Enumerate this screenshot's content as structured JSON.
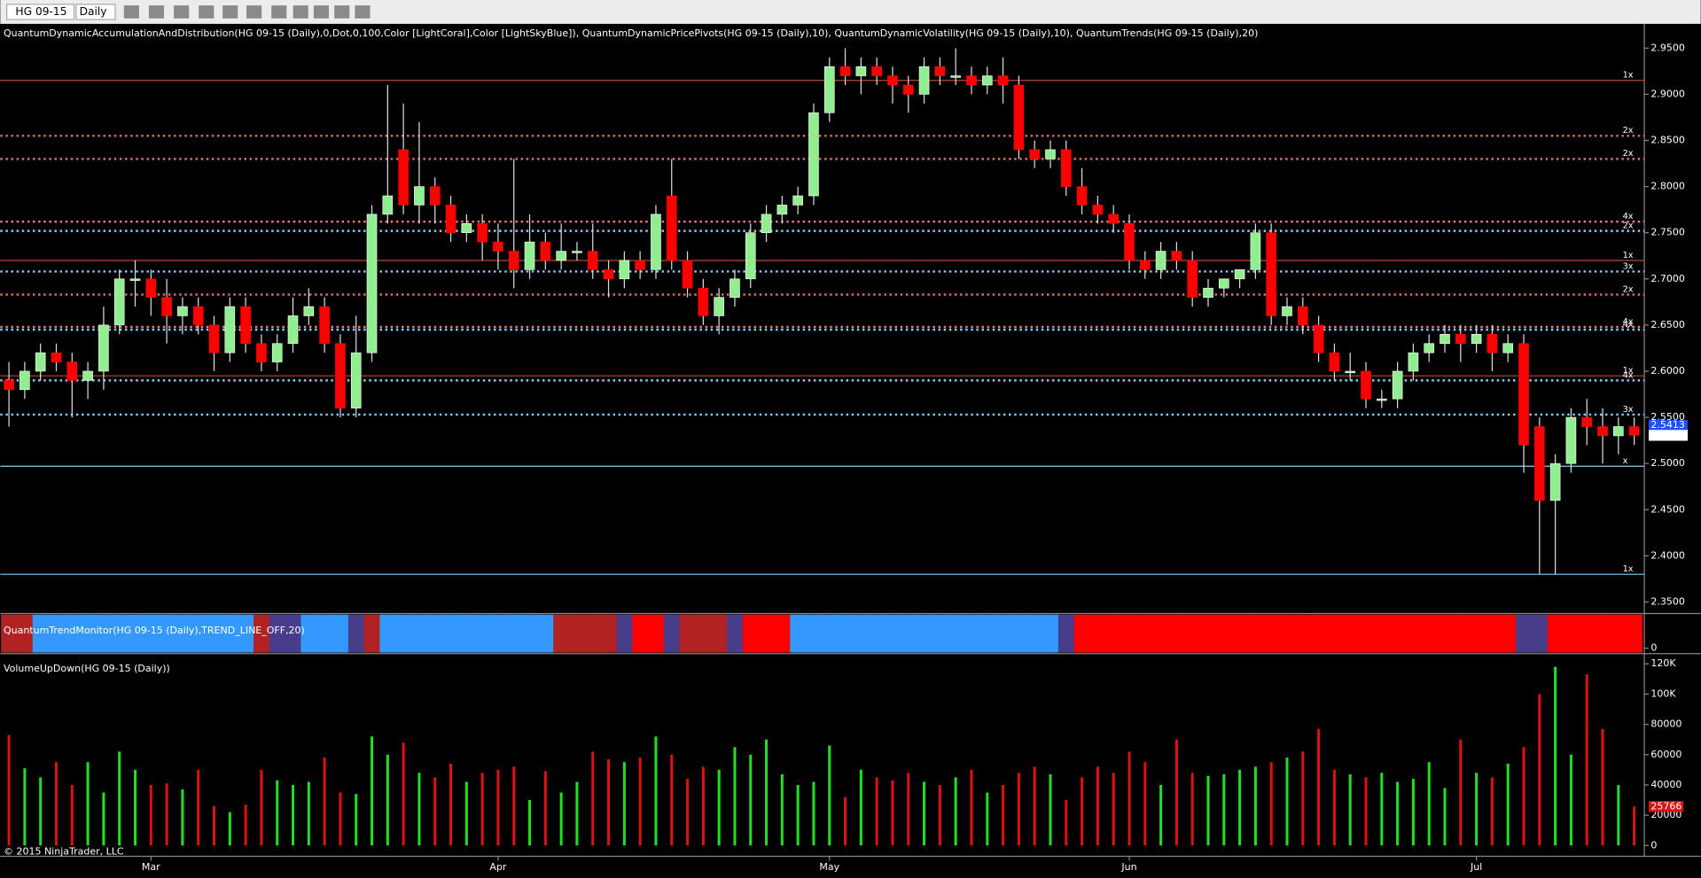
{
  "toolbar": {
    "instrument": "HG 09-15",
    "period": "Daily"
  },
  "footer": "© 2015 NinjaTrader, LLC",
  "chart_data": [
    {
      "type": "candlestick",
      "title": "QuantumDynamicAccumulationAndDistribution(HG 09-15 (Daily),0,Dot,0,100,Color [LightCoral],Color [LightSkyBlue]), QuantumDynamicPricePivots(HG 09-15 (Daily),10), QuantumDynamicVolatility(HG 09-15 (Daily),10), QuantumTrends(HG 09-15 (Daily),20)",
      "categories": [
        null,
        null,
        null,
        null,
        null,
        null,
        null,
        null,
        null,
        "Mar",
        null,
        null,
        null,
        null,
        null,
        null,
        null,
        null,
        null,
        null,
        null,
        null,
        null,
        null,
        null,
        null,
        null,
        null,
        null,
        null,
        null,
        "Apr",
        null,
        null,
        null,
        null,
        null,
        null,
        null,
        null,
        null,
        null,
        null,
        null,
        null,
        null,
        null,
        null,
        null,
        null,
        null,
        null,
        "May",
        null,
        null,
        null,
        null,
        null,
        null,
        null,
        null,
        null,
        null,
        null,
        null,
        null,
        null,
        null,
        null,
        null,
        null,
        "Jun",
        null,
        null,
        null,
        null,
        null,
        null,
        null,
        null,
        null,
        null,
        null,
        null,
        null,
        null,
        null,
        null,
        null,
        null,
        null,
        null,
        null,
        "Jul",
        null,
        null,
        null,
        null,
        null,
        null,
        null,
        null
      ],
      "ohlc": [
        [
          2.59,
          2.61,
          2.54,
          2.58
        ],
        [
          2.58,
          2.61,
          2.57,
          2.6
        ],
        [
          2.6,
          2.63,
          2.59,
          2.62
        ],
        [
          2.62,
          2.63,
          2.6,
          2.61
        ],
        [
          2.61,
          2.62,
          2.55,
          2.59
        ],
        [
          2.59,
          2.61,
          2.57,
          2.6
        ],
        [
          2.6,
          2.67,
          2.58,
          2.65
        ],
        [
          2.65,
          2.71,
          2.64,
          2.7
        ],
        [
          2.7,
          2.72,
          2.67,
          2.7
        ],
        [
          2.7,
          2.71,
          2.66,
          2.68
        ],
        [
          2.68,
          2.7,
          2.63,
          2.66
        ],
        [
          2.66,
          2.68,
          2.64,
          2.67
        ],
        [
          2.67,
          2.68,
          2.64,
          2.65
        ],
        [
          2.65,
          2.66,
          2.6,
          2.62
        ],
        [
          2.62,
          2.68,
          2.61,
          2.67
        ],
        [
          2.67,
          2.68,
          2.62,
          2.63
        ],
        [
          2.63,
          2.64,
          2.6,
          2.61
        ],
        [
          2.61,
          2.64,
          2.6,
          2.63
        ],
        [
          2.63,
          2.68,
          2.62,
          2.66
        ],
        [
          2.66,
          2.69,
          2.65,
          2.67
        ],
        [
          2.67,
          2.68,
          2.62,
          2.63
        ],
        [
          2.63,
          2.64,
          2.55,
          2.56
        ],
        [
          2.56,
          2.66,
          2.55,
          2.62
        ],
        [
          2.62,
          2.78,
          2.61,
          2.77
        ],
        [
          2.77,
          2.91,
          2.76,
          2.79
        ],
        [
          2.84,
          2.89,
          2.77,
          2.78
        ],
        [
          2.78,
          2.87,
          2.76,
          2.8
        ],
        [
          2.8,
          2.81,
          2.76,
          2.78
        ],
        [
          2.78,
          2.79,
          2.74,
          2.75
        ],
        [
          2.75,
          2.77,
          2.74,
          2.76
        ],
        [
          2.76,
          2.77,
          2.72,
          2.74
        ],
        [
          2.74,
          2.76,
          2.71,
          2.73
        ],
        [
          2.73,
          2.83,
          2.69,
          2.71
        ],
        [
          2.71,
          2.77,
          2.7,
          2.74
        ],
        [
          2.74,
          2.75,
          2.71,
          2.72
        ],
        [
          2.72,
          2.76,
          2.71,
          2.73
        ],
        [
          2.73,
          2.74,
          2.72,
          2.73
        ],
        [
          2.73,
          2.76,
          2.7,
          2.71
        ],
        [
          2.71,
          2.72,
          2.68,
          2.7
        ],
        [
          2.7,
          2.73,
          2.69,
          2.72
        ],
        [
          2.72,
          2.73,
          2.7,
          2.71
        ],
        [
          2.71,
          2.78,
          2.7,
          2.77
        ],
        [
          2.79,
          2.83,
          2.71,
          2.72
        ],
        [
          2.72,
          2.73,
          2.68,
          2.69
        ],
        [
          2.69,
          2.7,
          2.65,
          2.66
        ],
        [
          2.66,
          2.69,
          2.64,
          2.68
        ],
        [
          2.68,
          2.71,
          2.67,
          2.7
        ],
        [
          2.7,
          2.76,
          2.69,
          2.75
        ],
        [
          2.75,
          2.78,
          2.74,
          2.77
        ],
        [
          2.77,
          2.79,
          2.76,
          2.78
        ],
        [
          2.78,
          2.8,
          2.77,
          2.79
        ],
        [
          2.79,
          2.89,
          2.78,
          2.88
        ],
        [
          2.88,
          2.94,
          2.87,
          2.93
        ],
        [
          2.93,
          2.95,
          2.91,
          2.92
        ],
        [
          2.92,
          2.94,
          2.9,
          2.93
        ],
        [
          2.93,
          2.94,
          2.91,
          2.92
        ],
        [
          2.92,
          2.93,
          2.89,
          2.91
        ],
        [
          2.91,
          2.92,
          2.88,
          2.9
        ],
        [
          2.9,
          2.94,
          2.89,
          2.93
        ],
        [
          2.93,
          2.94,
          2.91,
          2.92
        ],
        [
          2.92,
          2.95,
          2.91,
          2.92
        ],
        [
          2.92,
          2.93,
          2.9,
          2.91
        ],
        [
          2.91,
          2.93,
          2.9,
          2.92
        ],
        [
          2.92,
          2.94,
          2.89,
          2.91
        ],
        [
          2.91,
          2.92,
          2.83,
          2.84
        ],
        [
          2.84,
          2.85,
          2.82,
          2.83
        ],
        [
          2.83,
          2.85,
          2.82,
          2.84
        ],
        [
          2.84,
          2.85,
          2.79,
          2.8
        ],
        [
          2.8,
          2.82,
          2.77,
          2.78
        ],
        [
          2.78,
          2.79,
          2.76,
          2.77
        ],
        [
          2.77,
          2.78,
          2.75,
          2.76
        ],
        [
          2.76,
          2.77,
          2.71,
          2.72
        ],
        [
          2.72,
          2.73,
          2.7,
          2.71
        ],
        [
          2.71,
          2.74,
          2.7,
          2.73
        ],
        [
          2.73,
          2.74,
          2.71,
          2.72
        ],
        [
          2.72,
          2.73,
          2.67,
          2.68
        ],
        [
          2.68,
          2.7,
          2.67,
          2.69
        ],
        [
          2.69,
          2.7,
          2.68,
          2.7
        ],
        [
          2.7,
          2.71,
          2.69,
          2.71
        ],
        [
          2.71,
          2.76,
          2.7,
          2.75
        ],
        [
          2.75,
          2.76,
          2.65,
          2.66
        ],
        [
          2.66,
          2.68,
          2.65,
          2.67
        ],
        [
          2.67,
          2.68,
          2.64,
          2.65
        ],
        [
          2.65,
          2.66,
          2.61,
          2.62
        ],
        [
          2.62,
          2.63,
          2.59,
          2.6
        ],
        [
          2.6,
          2.62,
          2.59,
          2.6
        ],
        [
          2.6,
          2.61,
          2.56,
          2.57
        ],
        [
          2.57,
          2.58,
          2.56,
          2.57
        ],
        [
          2.57,
          2.61,
          2.56,
          2.6
        ],
        [
          2.6,
          2.63,
          2.59,
          2.62
        ],
        [
          2.62,
          2.64,
          2.61,
          2.63
        ],
        [
          2.63,
          2.65,
          2.62,
          2.64
        ],
        [
          2.64,
          2.65,
          2.61,
          2.63
        ],
        [
          2.63,
          2.65,
          2.62,
          2.64
        ],
        [
          2.64,
          2.65,
          2.6,
          2.62
        ],
        [
          2.62,
          2.64,
          2.61,
          2.63
        ],
        [
          2.63,
          2.64,
          2.49,
          2.52
        ],
        [
          2.54,
          2.55,
          2.38,
          2.46
        ],
        [
          2.46,
          2.51,
          2.38,
          2.5
        ],
        [
          2.5,
          2.56,
          2.49,
          2.55
        ],
        [
          2.55,
          2.57,
          2.52,
          2.54
        ],
        [
          2.54,
          2.56,
          2.5,
          2.53
        ],
        [
          2.53,
          2.55,
          2.51,
          2.54
        ],
        [
          2.54,
          2.55,
          2.52,
          2.5305
        ]
      ],
      "up_color": "#90ee90",
      "down_color": "#ff0000",
      "ylim": [
        2.3375,
        2.9763
      ],
      "yticks": [
        {
          "value": 2.35,
          "label": "2.3500"
        },
        {
          "value": 2.4,
          "label": "2.4000"
        },
        {
          "value": 2.45,
          "label": "2.4500"
        },
        {
          "value": 2.5,
          "label": "2.5000"
        },
        {
          "value": 2.55,
          "label": "2.5500"
        },
        {
          "value": 2.6,
          "label": "2.6000"
        },
        {
          "value": 2.65,
          "label": "2.6500"
        },
        {
          "value": 2.7,
          "label": "2.7000"
        },
        {
          "value": 2.75,
          "label": "2.7500"
        },
        {
          "value": 2.8,
          "label": "2.8000"
        },
        {
          "value": 2.85,
          "label": "2.8500"
        },
        {
          "value": 2.9,
          "label": "2.9000"
        },
        {
          "value": 2.95,
          "label": "2.9500"
        }
      ],
      "levels": [
        {
          "value": 2.915,
          "label": "1x",
          "color": "#b04a3a",
          "dotted": false
        },
        {
          "value": 2.855,
          "label": "2x",
          "color": "#e07060",
          "dotted": true
        },
        {
          "value": 2.83,
          "label": "2x",
          "color": "#e07060",
          "dotted": true
        },
        {
          "value": 2.762,
          "label": "4x",
          "color": "#f08080",
          "dotted": true
        },
        {
          "value": 2.752,
          "label": "2x",
          "color": "#87cefa",
          "dotted": true
        },
        {
          "value": 2.72,
          "label": "1x",
          "color": "#b04a3a",
          "dotted": false
        },
        {
          "value": 2.708,
          "label": "3x",
          "color": "#87cefa",
          "dotted": true
        },
        {
          "value": 2.683,
          "label": "2x",
          "color": "#e07060",
          "dotted": true
        },
        {
          "value": 2.648,
          "label": "4x",
          "color": "#f08080",
          "dotted": true
        },
        {
          "value": 2.645,
          "label": "4x",
          "color": "#87cefa",
          "dotted": true
        },
        {
          "value": 2.595,
          "label": "1x",
          "color": "#b04a3a",
          "dotted": false
        },
        {
          "value": 2.59,
          "label": "4x",
          "color": "#87cefa",
          "dotted": true
        },
        {
          "value": 2.553,
          "label": "3x",
          "color": "#87cefa",
          "dotted": true
        },
        {
          "value": 2.497,
          "label": "x",
          "color": "#87cefa",
          "dotted": false
        },
        {
          "value": 2.38,
          "label": "1x",
          "color": "#87cefa",
          "dotted": false
        }
      ],
      "marker_price": 2.5413,
      "marker_color": "#1e50ff"
    },
    {
      "type": "band",
      "title": "QuantumTrendMonitor(HG 09-15 (Daily),TREND_LINE_OFF,20)",
      "yticks": [
        0
      ],
      "colors": [
        "#b22222",
        "#b22222",
        "#3399ff",
        "#3399ff",
        "#3399ff",
        "#3399ff",
        "#3399ff",
        "#3399ff",
        "#3399ff",
        "#3399ff",
        "#3399ff",
        "#3399ff",
        "#3399ff",
        "#3399ff",
        "#3399ff",
        "#3399ff",
        "#b22222",
        "#483d8b",
        "#483d8b",
        "#3399ff",
        "#3399ff",
        "#3399ff",
        "#483d8b",
        "#b22222",
        "#3399ff",
        "#3399ff",
        "#3399ff",
        "#3399ff",
        "#3399ff",
        "#3399ff",
        "#3399ff",
        "#3399ff",
        "#3399ff",
        "#3399ff",
        "#3399ff",
        "#b22222",
        "#b22222",
        "#b22222",
        "#b22222",
        "#483d8b",
        "#ff0000",
        "#ff0000",
        "#483d8b",
        "#b22222",
        "#b22222",
        "#b22222",
        "#483d8b",
        "#ff0000",
        "#ff0000",
        "#ff0000",
        "#3399ff",
        "#3399ff",
        "#3399ff",
        "#3399ff",
        "#3399ff",
        "#3399ff",
        "#3399ff",
        "#3399ff",
        "#3399ff",
        "#3399ff",
        "#3399ff",
        "#3399ff",
        "#3399ff",
        "#3399ff",
        "#3399ff",
        "#3399ff",
        "#3399ff",
        "#483d8b",
        "#ff0000",
        "#ff0000",
        "#ff0000",
        "#ff0000",
        "#ff0000",
        "#ff0000",
        "#ff0000",
        "#ff0000",
        "#ff0000",
        "#ff0000",
        "#ff0000",
        "#ff0000",
        "#ff0000",
        "#ff0000",
        "#ff0000",
        "#ff0000",
        "#ff0000",
        "#ff0000",
        "#ff0000",
        "#ff0000",
        "#ff0000",
        "#ff0000",
        "#ff0000",
        "#ff0000",
        "#ff0000",
        "#ff0000",
        "#ff0000",
        "#ff0000",
        "#483d8b",
        "#483d8b",
        "#ff0000",
        "#ff0000",
        "#ff0000",
        "#ff0000",
        "#ff0000",
        "#ff0000"
      ]
    },
    {
      "type": "volume",
      "title": "VolumeUpDown(HG 09-15 (Daily))",
      "values": [
        73000,
        51000,
        45000,
        55000,
        40000,
        55000,
        35000,
        62000,
        50000,
        40000,
        41000,
        37000,
        50000,
        26000,
        22000,
        27000,
        50000,
        43000,
        40000,
        42000,
        58000,
        35000,
        34000,
        72000,
        60000,
        68000,
        48000,
        45000,
        54000,
        42000,
        48000,
        50000,
        52000,
        30000,
        49000,
        35000,
        42000,
        62000,
        57000,
        55000,
        58000,
        72000,
        60000,
        44000,
        52000,
        50000,
        65000,
        60000,
        70000,
        47000,
        40000,
        42000,
        66000,
        32000,
        50000,
        45000,
        43000,
        48000,
        42000,
        40000,
        45000,
        50000,
        35000,
        40000,
        48000,
        52000,
        47000,
        30000,
        45000,
        52000,
        48000,
        62000,
        55000,
        40000,
        70000,
        48000,
        46000,
        47000,
        50000,
        52000,
        55000,
        58000,
        62000,
        77000,
        50000,
        47000,
        45000,
        48000,
        42000,
        44000,
        55000,
        38000,
        70000,
        48000,
        45000,
        54000,
        65000,
        100000,
        118000,
        60000,
        113000,
        77000,
        40000,
        25766
      ],
      "ylim": [
        0,
        126000
      ],
      "yticks": [
        0,
        20000,
        40000,
        60000,
        80000,
        {
          "value": 100000,
          "label": "100K"
        },
        {
          "value": 120000,
          "label": "120K"
        }
      ]
    }
  ]
}
